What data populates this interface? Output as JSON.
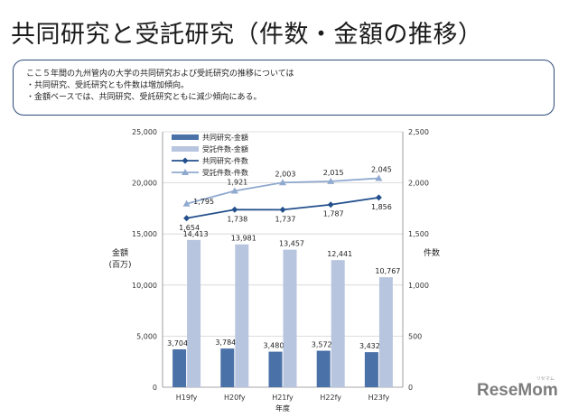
{
  "title": "共同研究と受託研究（件数・金額の推移）",
  "summary": [
    "ここ５年間の九州管内の大学の共同研究および受託研究の推移については",
    "・共同研究、受託研究とも件数は増加傾向。",
    "・金額ベースでは、共同研究、受託研究ともに減少傾向にある。"
  ],
  "watermark": {
    "brand": "ReseMom",
    "ruby": "リセマム"
  },
  "colors": {
    "joint_amount": "#4a71a8",
    "contract_amount": "#b7c5df",
    "joint_count": "#23508c",
    "contract_count": "#8fa9cf",
    "box_border": "#2e4a7a"
  },
  "chart_data": {
    "type": "bar",
    "categories": [
      "H19fy",
      "H20fy",
      "H21fy",
      "H22fy",
      "H23fy"
    ],
    "xlabel": "年度",
    "ylabel_left": "金額\n(百万)",
    "ylabel_right": "件数",
    "ylim_left": [
      0,
      25000
    ],
    "ylim_right": [
      0,
      2500
    ],
    "yticks_left": [
      "0",
      "5,000",
      "10,000",
      "15,000",
      "20,000",
      "25,000"
    ],
    "yticks_right": [
      "0",
      "500",
      "1,000",
      "1,500",
      "2,000",
      "2,500"
    ],
    "grid": true,
    "legend_position": "top-left",
    "series": [
      {
        "name": "共同研究-金額",
        "kind": "bar",
        "axis": "left",
        "values": [
          3704,
          3784,
          3480,
          3572,
          3432
        ],
        "labels": [
          "3,704",
          "3,784",
          "3,480",
          "3,572",
          "3,432"
        ]
      },
      {
        "name": "受託件数-金額",
        "kind": "bar",
        "axis": "left",
        "values": [
          14413,
          13981,
          13457,
          12441,
          10767
        ],
        "labels": [
          "14,413",
          "13,981",
          "13,457",
          "12,441",
          "10,767"
        ]
      },
      {
        "name": "共同研究-件数",
        "kind": "line",
        "marker": "diamond",
        "axis": "right",
        "values": [
          1654,
          1738,
          1737,
          1787,
          1856
        ],
        "labels": [
          "1,654",
          "1,738",
          "1,737",
          "1,787",
          "1,856"
        ]
      },
      {
        "name": "受託件数-件数",
        "kind": "line",
        "marker": "triangle",
        "axis": "right",
        "values": [
          1795,
          1921,
          2003,
          2015,
          2045
        ],
        "labels": [
          "1,795",
          "1,921",
          "2,003",
          "2,015",
          "2,045"
        ]
      }
    ]
  }
}
